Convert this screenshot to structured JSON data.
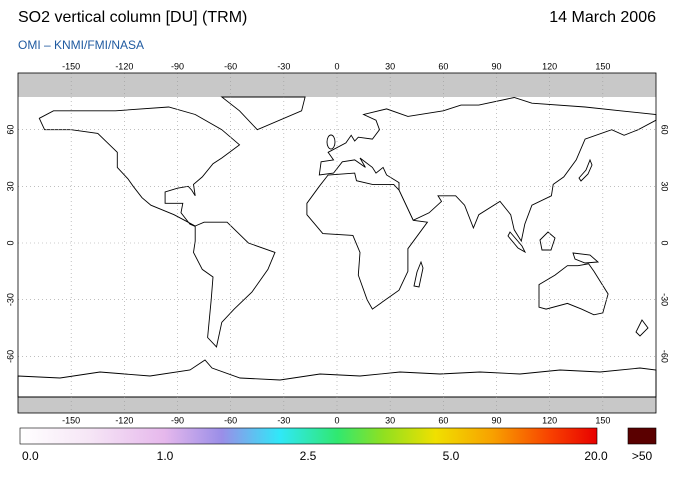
{
  "header": {
    "title": "SO2 vertical column [DU] (TRM)",
    "date": "14 March 2006",
    "source": "OMI – KNMI/FMI/NASA"
  },
  "map": {
    "lon_ticks": [
      -150,
      -120,
      -90,
      -60,
      -30,
      0,
      30,
      60,
      90,
      120,
      150
    ],
    "lat_ticks": [
      60,
      30,
      0,
      -30,
      -60
    ]
  },
  "colorbar": {
    "labels": [
      "0.0",
      "1.0",
      "2.5",
      "5.0",
      "20.0"
    ],
    "overflow": ">50"
  }
}
